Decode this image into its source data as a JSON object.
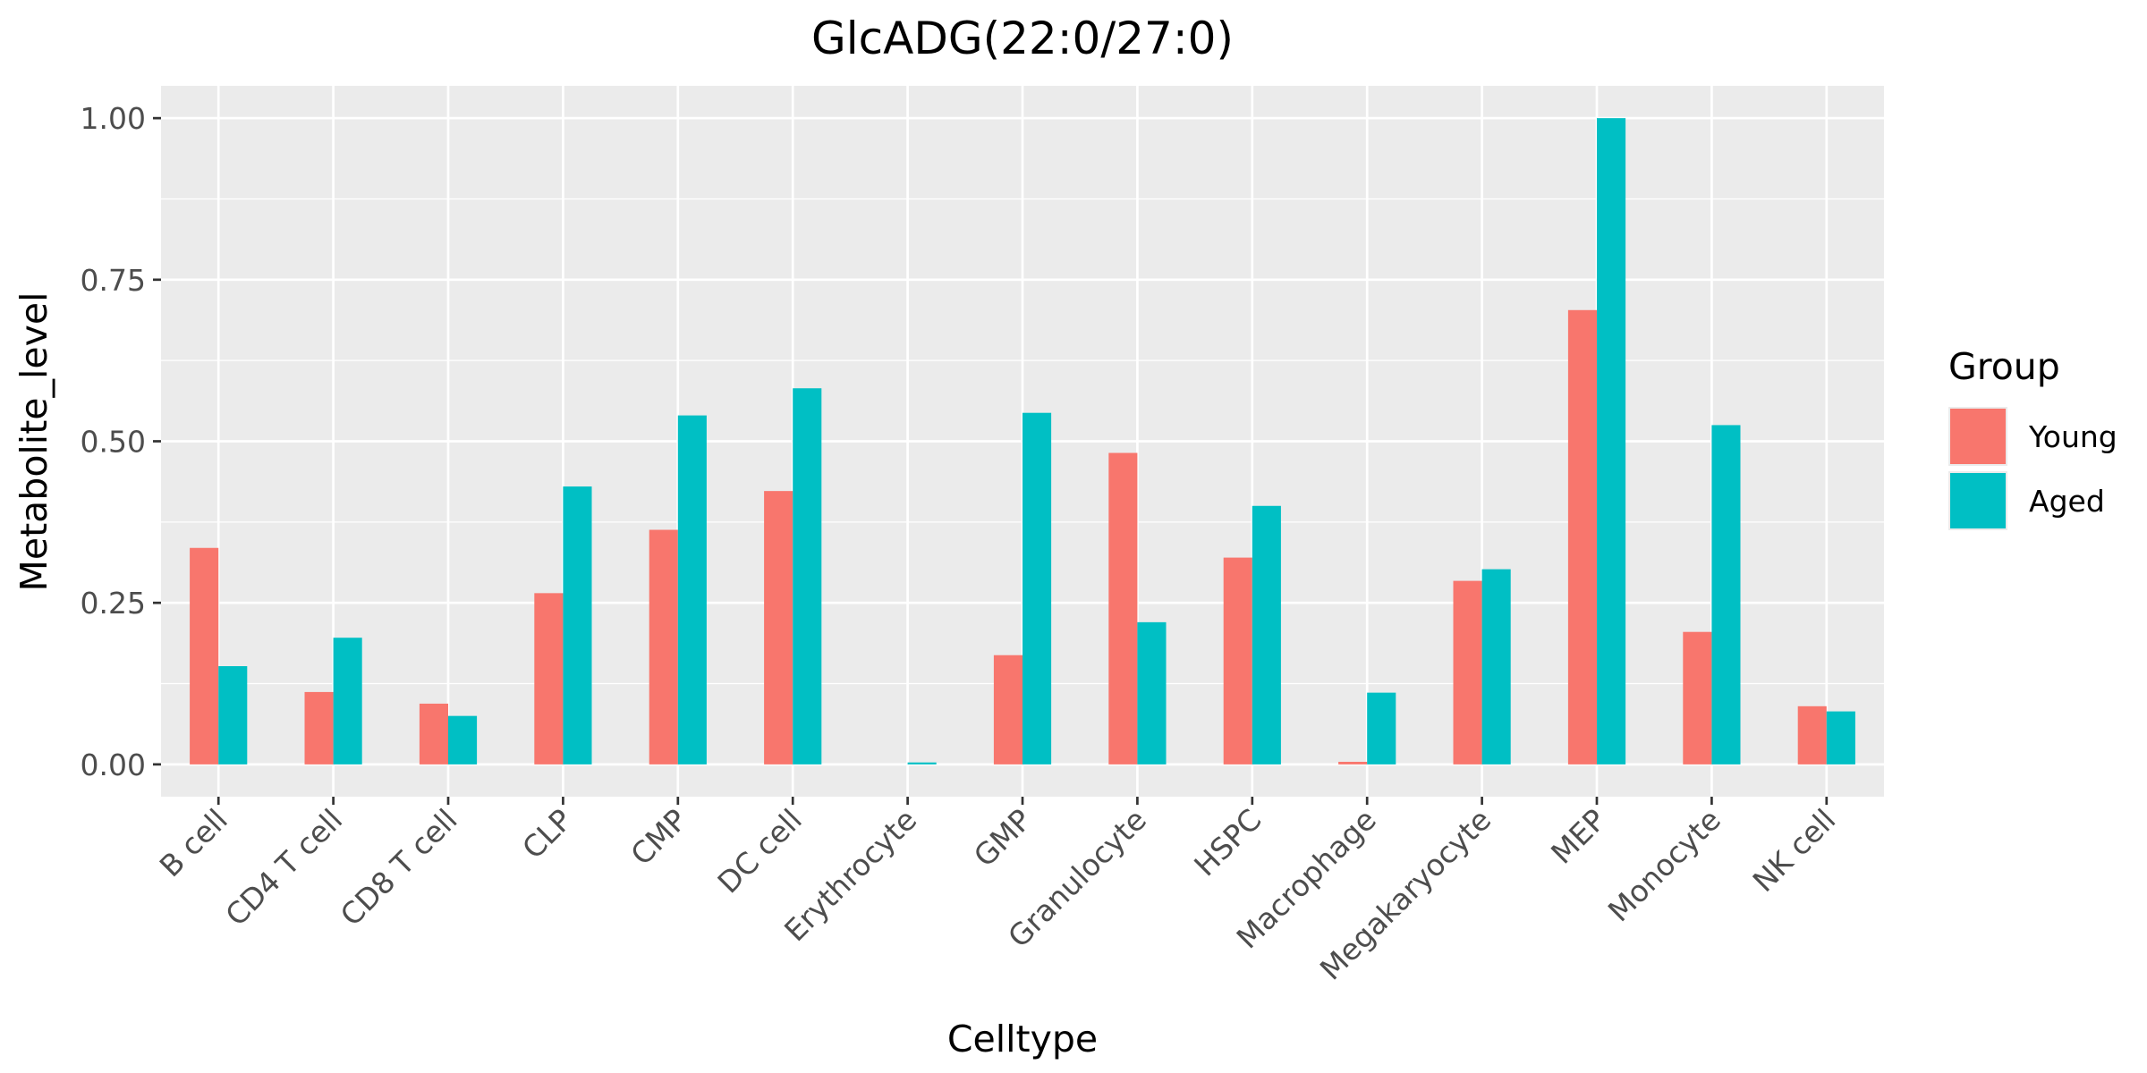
{
  "chart_data": {
    "type": "bar",
    "title": "GlcADG(22:0/27:0)",
    "xlabel": "Celltype",
    "ylabel": "Metabolite_level",
    "ylim": [
      -0.05,
      1.05
    ],
    "yticks": [
      0.0,
      0.25,
      0.5,
      0.75,
      1.0
    ],
    "ytick_labels": [
      "0.00",
      "0.25",
      "0.50",
      "0.75",
      "1.00"
    ],
    "grid": true,
    "legend_position": "right",
    "legend_title": "Group",
    "categories": [
      "B cell",
      "CD4 T cell",
      "CD8 T cell",
      "CLP",
      "CMP",
      "DC cell",
      "Erythrocyte",
      "GMP",
      "Granulocyte",
      "HSPC",
      "Macrophage",
      "Megakaryocyte",
      "MEP",
      "Monocyte",
      "NK cell"
    ],
    "series": [
      {
        "name": "Young",
        "color": "#F8766D",
        "values": [
          0.335,
          0.112,
          0.094,
          0.265,
          0.363,
          0.423,
          0.0,
          0.169,
          0.482,
          0.32,
          0.004,
          0.284,
          0.703,
          0.205,
          0.09
        ]
      },
      {
        "name": "Aged",
        "color": "#00BFC4",
        "values": [
          0.152,
          0.196,
          0.075,
          0.43,
          0.54,
          0.582,
          0.003,
          0.544,
          0.22,
          0.4,
          0.111,
          0.302,
          1.0,
          0.525,
          0.082
        ]
      }
    ]
  }
}
